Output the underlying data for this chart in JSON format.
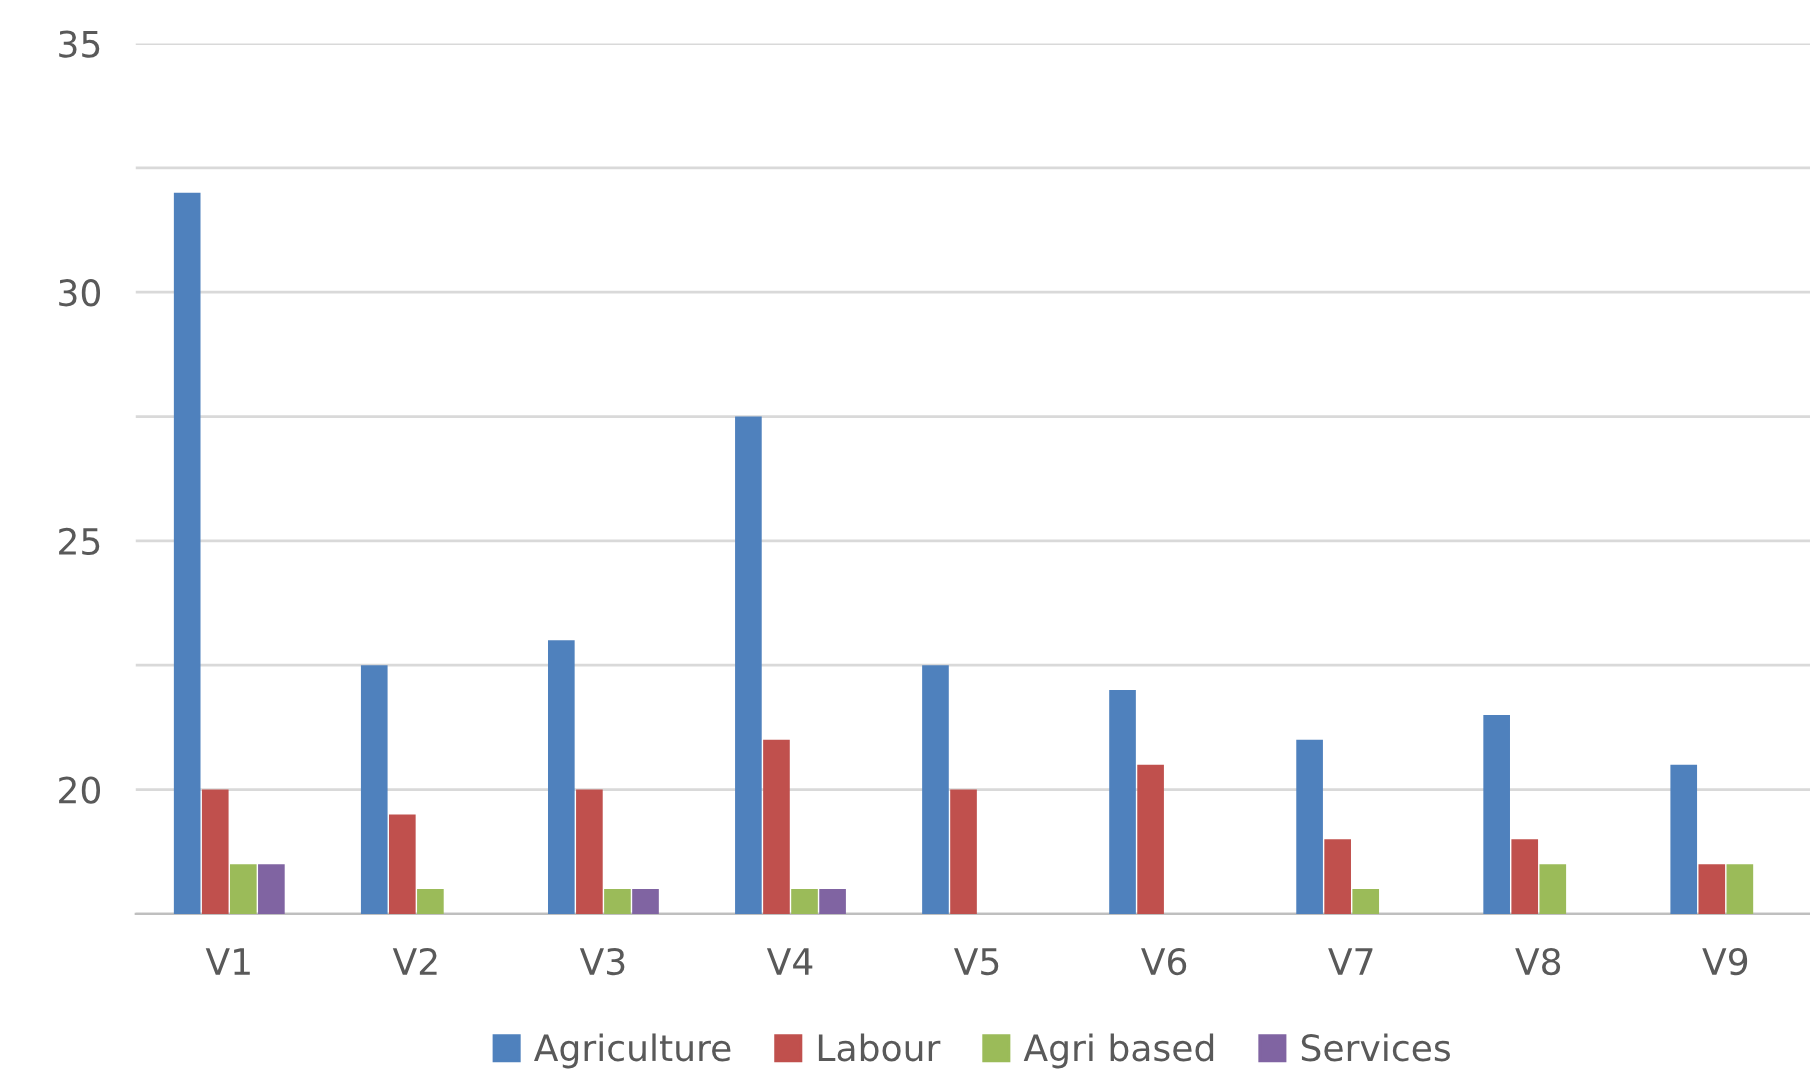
{
  "chart_data": {
    "type": "bar",
    "categories": [
      "V1",
      "V2",
      "V3",
      "V4",
      "V5",
      "V6",
      "V7",
      "V8",
      "V9"
    ],
    "series": [
      {
        "name": "Agriculture",
        "color": "#4f81bd",
        "values": [
          32,
          22.5,
          23,
          27.5,
          22.5,
          22,
          21,
          21.5,
          20.5
        ]
      },
      {
        "name": "Labour",
        "color": "#c0504d",
        "values": [
          20,
          19.5,
          20,
          21,
          20,
          20.5,
          19,
          19,
          18.5
        ]
      },
      {
        "name": "Agri based",
        "color": "#9bbb59",
        "values": [
          18.5,
          18,
          18,
          18,
          null,
          null,
          18,
          18.5,
          18.5
        ]
      },
      {
        "name": "Services",
        "color": "#8064a2",
        "values": [
          18.5,
          null,
          18,
          18,
          null,
          null,
          null,
          null,
          null
        ]
      }
    ],
    "ylim": [
      17.5,
      35
    ],
    "yticks": [
      {
        "value": 17.5,
        "label": null
      },
      20,
      {
        "value": 22.5,
        "label": null
      },
      25,
      {
        "value": 27.5,
        "label": null
      },
      30,
      {
        "value": 32.5,
        "label": null
      },
      35
    ],
    "grid": "y",
    "legend": "bottom"
  }
}
